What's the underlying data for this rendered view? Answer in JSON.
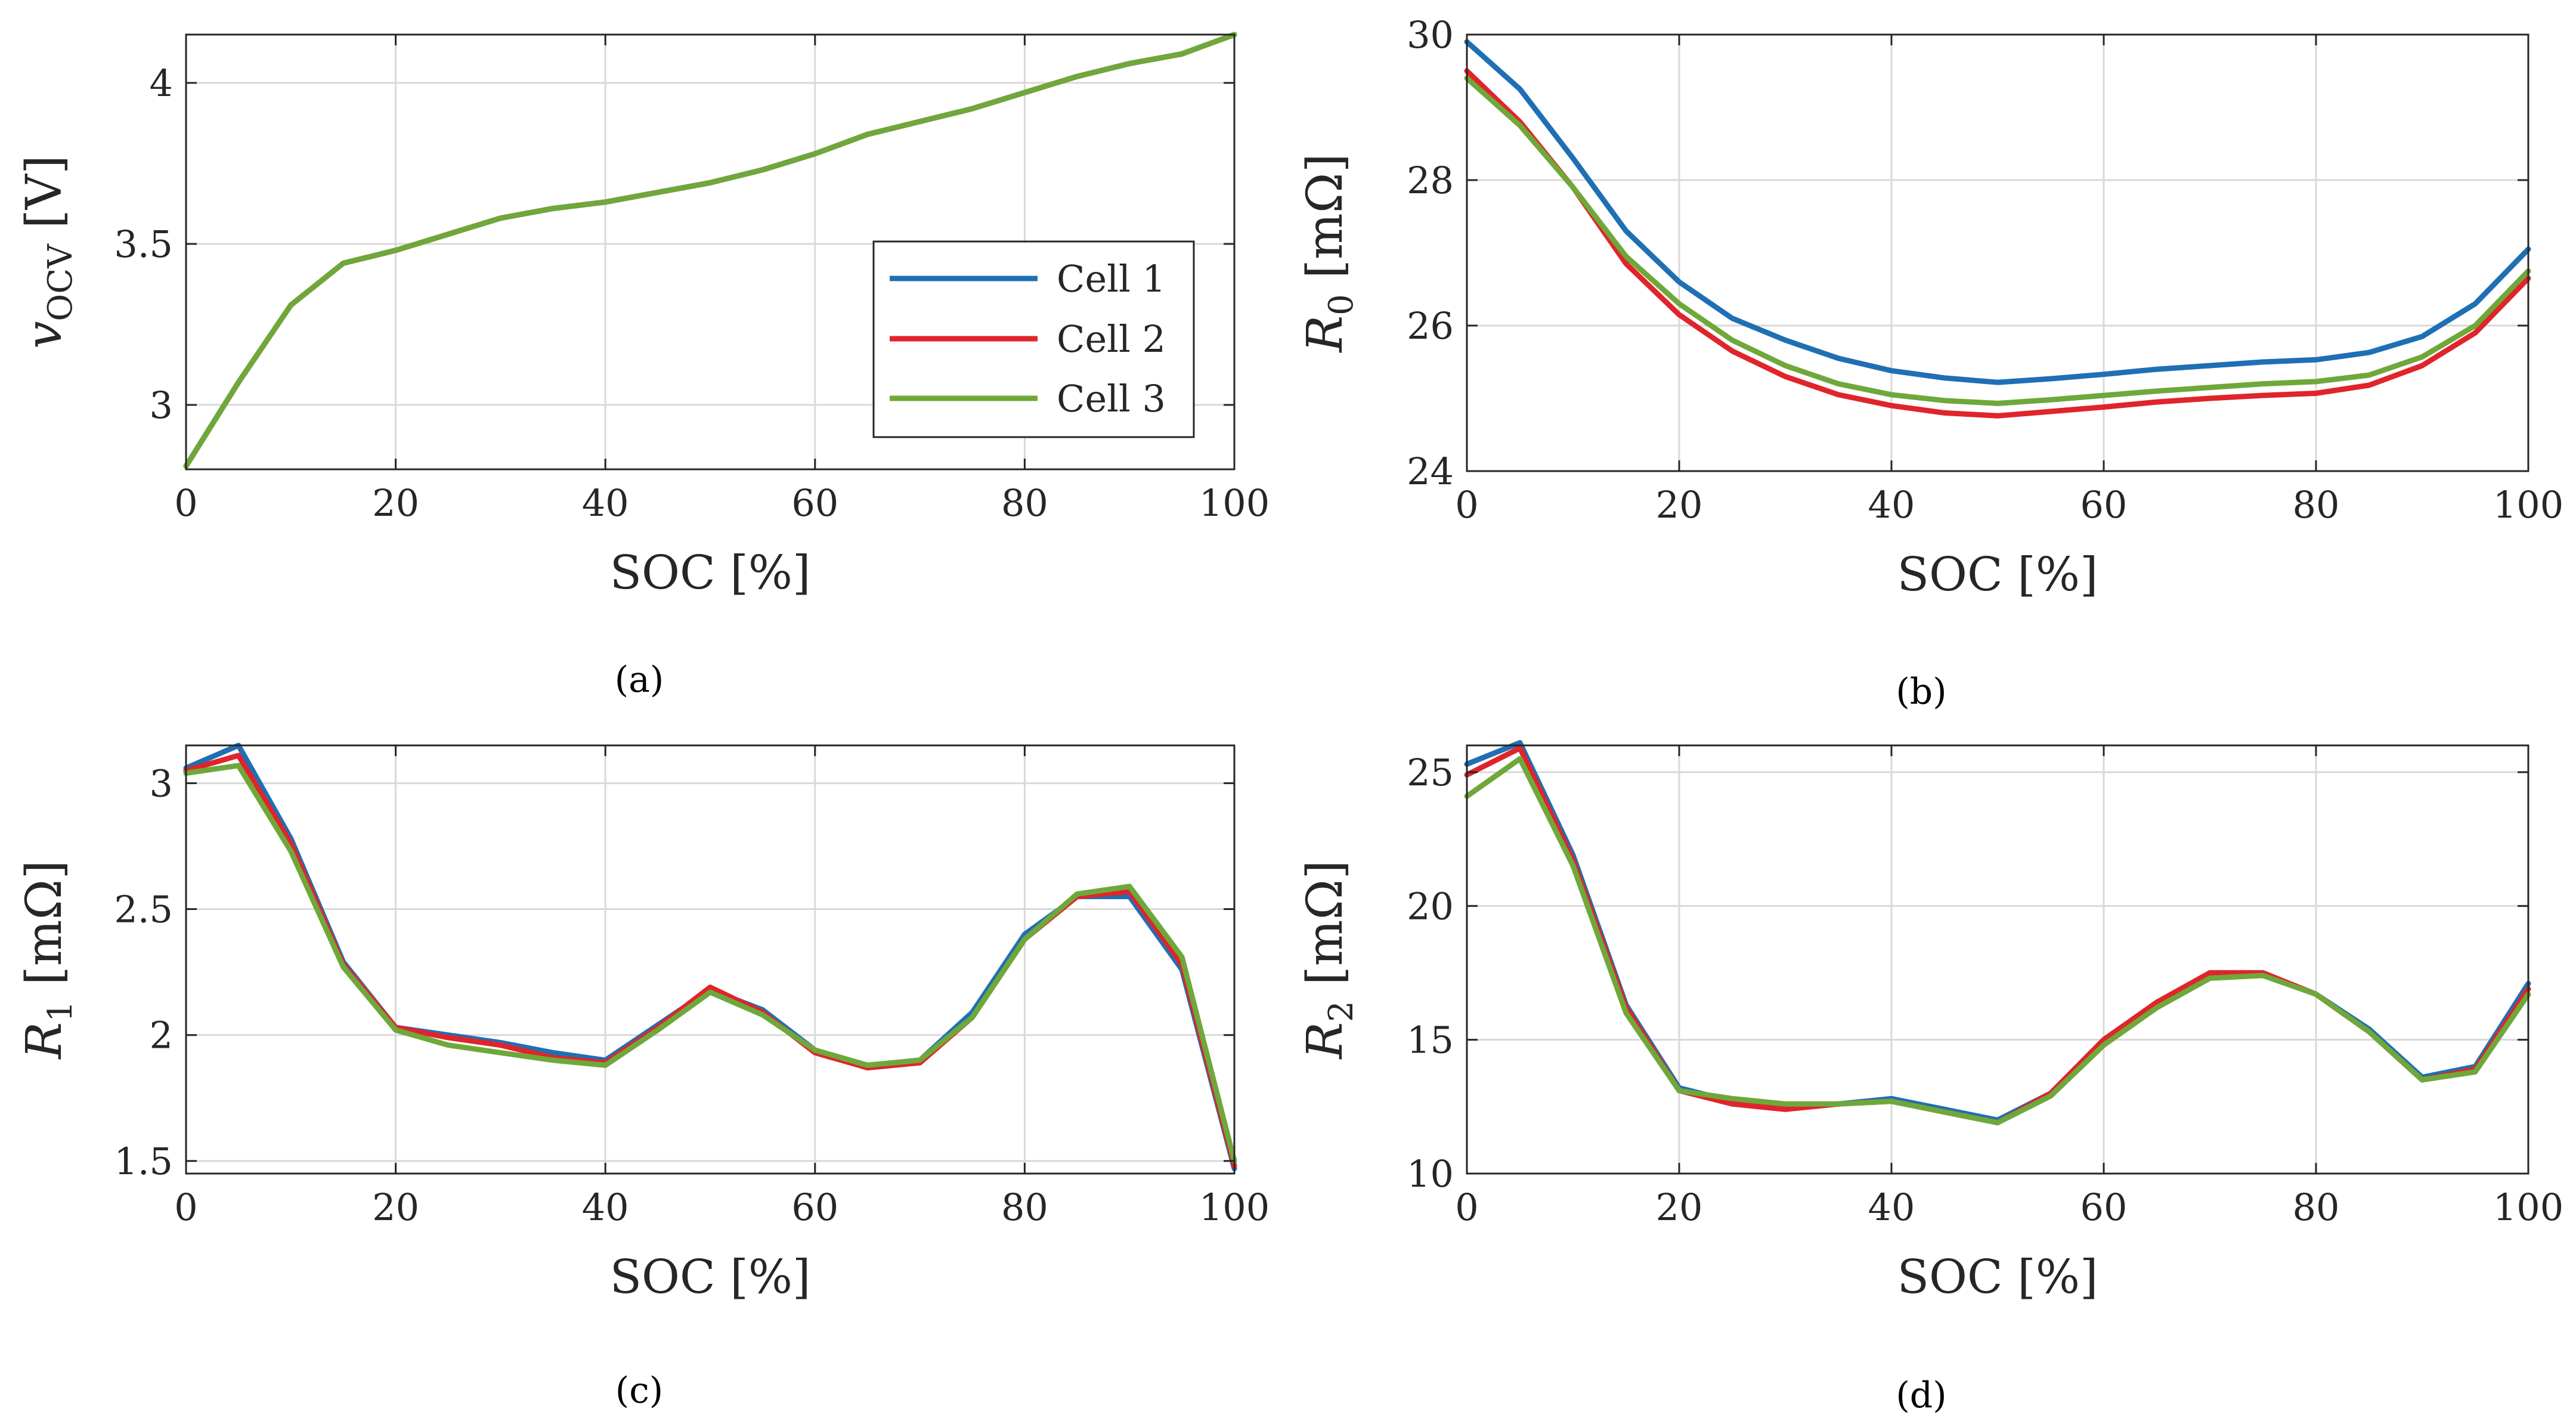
{
  "colors": {
    "cell1": "#1f6fb4",
    "cell2": "#e0242b",
    "cell3": "#6fa83a"
  },
  "legend": {
    "entries": [
      "Cell 1",
      "Cell 2",
      "Cell 3"
    ]
  },
  "captions": {
    "a": "(a)",
    "b": "(b)",
    "c": "(c)",
    "d": "(d)"
  },
  "chart_data": [
    {
      "id": "a",
      "type": "line",
      "caption": "(a)",
      "xlabel": "SOC [%]",
      "ylabel": {
        "main": "v",
        "sub": "OCV",
        "unit": " [V]"
      },
      "xlim": [
        0,
        100
      ],
      "ylim": [
        2.8,
        4.15
      ],
      "xticks": [
        0,
        20,
        40,
        60,
        80,
        100
      ],
      "yticks": [
        3,
        3.5,
        4
      ],
      "ytick_labels": [
        "3",
        "3.5",
        "4"
      ],
      "x": [
        0,
        5,
        10,
        15,
        20,
        25,
        30,
        35,
        40,
        45,
        50,
        55,
        60,
        65,
        70,
        75,
        80,
        85,
        90,
        95,
        100
      ],
      "series": [
        {
          "name": "Cell 1",
          "values": [
            2.81,
            3.07,
            3.31,
            3.44,
            3.48,
            3.53,
            3.58,
            3.61,
            3.63,
            3.66,
            3.69,
            3.73,
            3.78,
            3.84,
            3.88,
            3.92,
            3.97,
            4.02,
            4.06,
            4.09,
            4.15
          ]
        },
        {
          "name": "Cell 2",
          "values": [
            2.81,
            3.07,
            3.31,
            3.44,
            3.48,
            3.53,
            3.58,
            3.61,
            3.63,
            3.66,
            3.69,
            3.73,
            3.78,
            3.84,
            3.88,
            3.92,
            3.97,
            4.02,
            4.06,
            4.09,
            4.15
          ]
        },
        {
          "name": "Cell 3",
          "values": [
            2.81,
            3.07,
            3.31,
            3.44,
            3.48,
            3.53,
            3.58,
            3.61,
            3.63,
            3.66,
            3.69,
            3.73,
            3.78,
            3.84,
            3.88,
            3.92,
            3.97,
            4.02,
            4.06,
            4.09,
            4.15
          ]
        }
      ],
      "legend": "inside-lower-right"
    },
    {
      "id": "b",
      "type": "line",
      "caption": "(b)",
      "xlabel": "SOC [%]",
      "ylabel": {
        "main": "R",
        "sub": "0",
        "unit": " [mΩ]"
      },
      "xlim": [
        0,
        100
      ],
      "ylim": [
        24,
        30
      ],
      "xticks": [
        0,
        20,
        40,
        60,
        80,
        100
      ],
      "yticks": [
        24,
        26,
        28,
        30
      ],
      "ytick_labels": [
        "24",
        "26",
        "28",
        "30"
      ],
      "x": [
        0,
        5,
        10,
        15,
        20,
        25,
        30,
        35,
        40,
        45,
        50,
        55,
        60,
        65,
        70,
        75,
        80,
        85,
        90,
        95,
        100
      ],
      "series": [
        {
          "name": "Cell 1",
          "values": [
            29.9,
            29.25,
            28.3,
            27.3,
            26.6,
            26.1,
            25.8,
            25.55,
            25.38,
            25.28,
            25.22,
            25.27,
            25.33,
            25.4,
            25.45,
            25.5,
            25.53,
            25.63,
            25.85,
            26.3,
            27.05
          ]
        },
        {
          "name": "Cell 2",
          "values": [
            29.5,
            28.8,
            27.9,
            26.85,
            26.15,
            25.65,
            25.3,
            25.05,
            24.9,
            24.8,
            24.76,
            24.82,
            24.88,
            24.95,
            25.0,
            25.04,
            25.07,
            25.18,
            25.45,
            25.9,
            26.65
          ]
        },
        {
          "name": "Cell 3",
          "values": [
            29.4,
            28.75,
            27.9,
            26.95,
            26.3,
            25.8,
            25.45,
            25.2,
            25.05,
            24.97,
            24.93,
            24.98,
            25.04,
            25.1,
            25.15,
            25.2,
            25.23,
            25.32,
            25.57,
            26.0,
            26.75
          ]
        }
      ]
    },
    {
      "id": "c",
      "type": "line",
      "caption": "(c)",
      "xlabel": "SOC [%]",
      "ylabel": {
        "main": "R",
        "sub": "1",
        "unit": " [mΩ]"
      },
      "xlim": [
        0,
        100
      ],
      "ylim": [
        1.45,
        3.15
      ],
      "xticks": [
        0,
        20,
        40,
        60,
        80,
        100
      ],
      "yticks": [
        1.5,
        2,
        2.5,
        3
      ],
      "ytick_labels": [
        "1.5",
        "2",
        "2.5",
        "3"
      ],
      "x": [
        0,
        5,
        10,
        15,
        20,
        25,
        30,
        35,
        40,
        45,
        50,
        55,
        60,
        65,
        70,
        75,
        80,
        85,
        90,
        95,
        100
      ],
      "series": [
        {
          "name": "Cell 1",
          "values": [
            3.06,
            3.15,
            2.78,
            2.29,
            2.03,
            2.0,
            1.97,
            1.93,
            1.9,
            2.04,
            2.18,
            2.1,
            1.94,
            1.88,
            1.9,
            2.09,
            2.4,
            2.55,
            2.55,
            2.26,
            1.47
          ]
        },
        {
          "name": "Cell 2",
          "values": [
            3.05,
            3.11,
            2.76,
            2.28,
            2.03,
            1.99,
            1.96,
            1.91,
            1.89,
            2.03,
            2.19,
            2.09,
            1.93,
            1.87,
            1.89,
            2.07,
            2.38,
            2.55,
            2.57,
            2.28,
            1.48
          ]
        },
        {
          "name": "Cell 3",
          "values": [
            3.04,
            3.07,
            2.73,
            2.27,
            2.02,
            1.96,
            1.93,
            1.9,
            1.88,
            2.02,
            2.17,
            2.08,
            1.94,
            1.88,
            1.9,
            2.07,
            2.38,
            2.56,
            2.59,
            2.31,
            1.5
          ]
        }
      ]
    },
    {
      "id": "d",
      "type": "line",
      "caption": "(d)",
      "xlabel": "SOC [%]",
      "ylabel": {
        "main": "R",
        "sub": "2",
        "unit": " [mΩ]"
      },
      "xlim": [
        0,
        100
      ],
      "ylim": [
        10,
        26
      ],
      "xticks": [
        0,
        20,
        40,
        60,
        80,
        100
      ],
      "yticks": [
        10,
        15,
        20,
        25
      ],
      "ytick_labels": [
        "10",
        "15",
        "20",
        "25"
      ],
      "x": [
        0,
        5,
        10,
        15,
        20,
        25,
        30,
        35,
        40,
        45,
        50,
        55,
        60,
        65,
        70,
        75,
        80,
        85,
        90,
        95,
        100
      ],
      "series": [
        {
          "name": "Cell 1",
          "values": [
            25.3,
            26.1,
            21.9,
            16.3,
            13.2,
            12.7,
            12.5,
            12.6,
            12.8,
            12.4,
            12.0,
            13.0,
            15.0,
            16.4,
            17.5,
            17.5,
            16.7,
            15.4,
            13.6,
            14.0,
            17.1
          ]
        },
        {
          "name": "Cell 2",
          "values": [
            24.9,
            25.9,
            21.7,
            16.2,
            13.1,
            12.6,
            12.4,
            12.6,
            12.7,
            12.3,
            11.9,
            13.0,
            15.0,
            16.4,
            17.5,
            17.5,
            16.7,
            15.3,
            13.5,
            13.9,
            16.9
          ]
        },
        {
          "name": "Cell 3",
          "values": [
            24.1,
            25.5,
            21.5,
            16.0,
            13.1,
            12.8,
            12.6,
            12.6,
            12.7,
            12.3,
            11.9,
            12.9,
            14.8,
            16.2,
            17.3,
            17.4,
            16.7,
            15.3,
            13.5,
            13.8,
            16.7
          ]
        }
      ]
    }
  ]
}
